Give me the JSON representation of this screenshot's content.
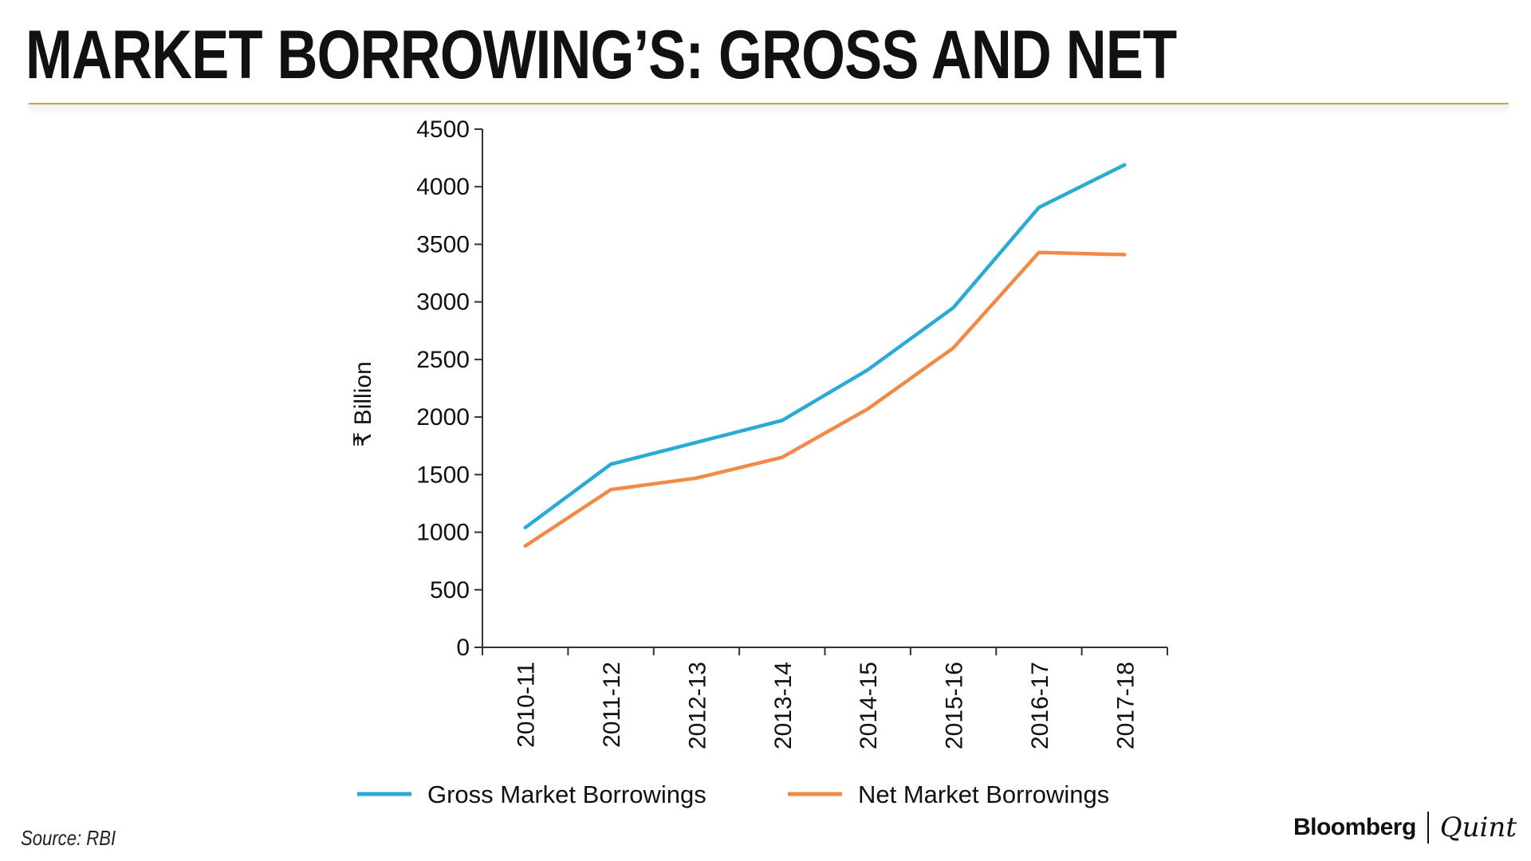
{
  "header": {
    "title": "MARKET BORROWING’S: GROSS AND NET"
  },
  "chart_data": {
    "type": "line",
    "categories": [
      "2010-11",
      "2011-12",
      "2012-13",
      "2013-14",
      "2014-15",
      "2015-16",
      "2016-17",
      "2017-18"
    ],
    "series": [
      {
        "name": "Gross Market Borrowings",
        "color": "#29abd6",
        "values": [
          1040,
          1590,
          1780,
          1970,
          2410,
          2950,
          3820,
          4190
        ]
      },
      {
        "name": "Net Market Borrowings",
        "color": "#f08a46",
        "values": [
          880,
          1370,
          1470,
          1650,
          2070,
          2600,
          3430,
          3410
        ]
      }
    ],
    "ylabel": "₹ Billion",
    "xlabel": "",
    "ylim": [
      0,
      4500
    ],
    "yticks": [
      0,
      500,
      1000,
      1500,
      2000,
      2500,
      3000,
      3500,
      4000,
      4500
    ],
    "grid": false,
    "legend_position": "bottom"
  },
  "footer": {
    "source": "Source: RBI",
    "brand_primary": "Bloomberg",
    "brand_secondary": "Quint"
  }
}
